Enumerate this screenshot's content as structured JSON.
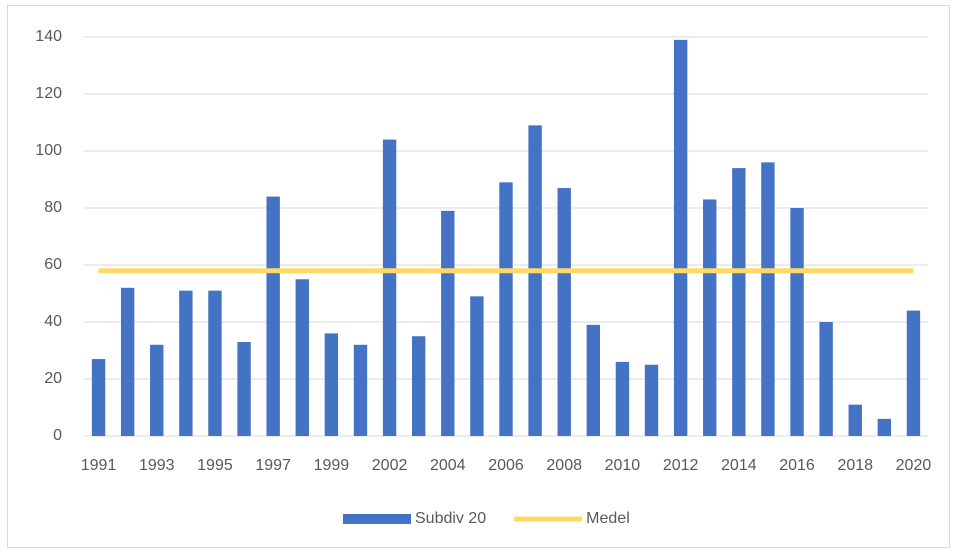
{
  "chart_data": {
    "type": "bar",
    "categories": [
      "1991",
      null,
      "1993",
      null,
      "1995",
      null,
      "1997",
      null,
      "1999",
      null,
      "2002",
      null,
      "2004",
      null,
      "2006",
      null,
      "2008",
      null,
      "2010",
      null,
      "2012",
      null,
      "2014",
      null,
      "2016",
      null,
      "2018",
      null,
      "2020"
    ],
    "series": [
      {
        "name": "Subdiv 20",
        "type": "bar",
        "color": "#4472c4",
        "values": [
          27,
          52,
          32,
          51,
          51,
          33,
          84,
          55,
          36,
          32,
          104,
          35,
          79,
          49,
          89,
          109,
          87,
          39,
          26,
          25,
          139,
          83,
          94,
          96,
          80,
          40,
          11,
          6,
          44
        ]
      },
      {
        "name": "Medel",
        "type": "line",
        "color": "#ffd966",
        "values": [
          58,
          58,
          58,
          58,
          58,
          58,
          58,
          58,
          58,
          58,
          58,
          58,
          58,
          58,
          58,
          58,
          58,
          58,
          58,
          58,
          58,
          58,
          58,
          58,
          58,
          58,
          58,
          58,
          58
        ]
      }
    ],
    "ylim": [
      0,
      140
    ],
    "yticks": [
      0,
      20,
      40,
      60,
      80,
      100,
      120,
      140
    ],
    "grid": true,
    "legend": "bottom"
  }
}
